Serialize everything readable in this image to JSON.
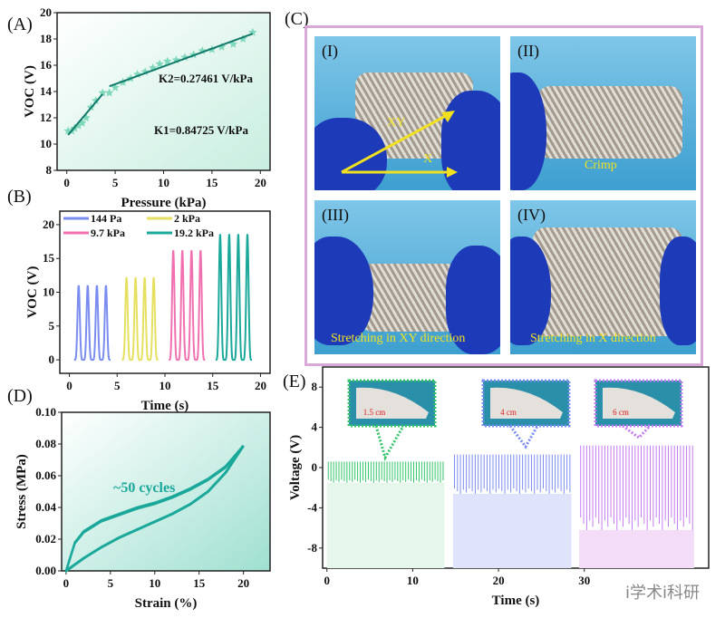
{
  "panels": {
    "A": "(A)",
    "B": "(B)",
    "C": "(C)",
    "D": "(D)",
    "E": "(E)"
  },
  "colors": {
    "teal": "#1aa89a",
    "green": "#33c46a",
    "blue": "#7b8cf0",
    "purple": "#c57bf0",
    "pink": "#f070b0",
    "yellow": "#e6e060",
    "c_border": "#d8a8d8"
  },
  "photos": [
    {
      "tag": "(I)",
      "caption_xy": "XY",
      "caption_x": "X"
    },
    {
      "tag": "(II)",
      "caption": "Crimp"
    },
    {
      "tag": "(III)",
      "caption": "Stretching in XY direction"
    },
    {
      "tag": "(IV)",
      "caption": "Stretching in X direction"
    }
  ],
  "insets": [
    "1.5 cm",
    "4 cm",
    "6 cm"
  ],
  "watermark": "i学术i科研",
  "chart_data": [
    {
      "id": "A",
      "type": "scatter",
      "xlabel": "Pressure (kPa)",
      "ylabel": "VOC (V)",
      "xlim": [
        -1,
        21
      ],
      "ylim": [
        8,
        20
      ],
      "xticks": [
        0,
        5,
        10,
        15,
        20
      ],
      "yticks": [
        8,
        10,
        12,
        14,
        16,
        18,
        20
      ],
      "x": [
        0.14,
        0.5,
        0.8,
        1.2,
        1.6,
        2.0,
        2.5,
        3.0,
        3.7,
        4.4,
        5.0,
        5.8,
        6.6,
        7.3,
        8.1,
        8.9,
        9.6,
        10.4,
        11.3,
        12.2,
        13.1,
        14.0,
        15.0,
        16.0,
        17.2,
        18.2,
        19.2
      ],
      "y": [
        11.0,
        11.0,
        11.2,
        11.4,
        11.6,
        12.0,
        12.8,
        13.3,
        13.9,
        13.9,
        14.3,
        14.7,
        15.0,
        15.3,
        15.5,
        15.8,
        16.1,
        16.3,
        16.4,
        16.6,
        16.8,
        17.1,
        17.2,
        17.4,
        17.6,
        18.0,
        18.5
      ],
      "fits": [
        {
          "label": "K1=0.84725 V/kPa",
          "x": [
            0.14,
            3.7
          ],
          "y": [
            10.7,
            13.8
          ]
        },
        {
          "label": "K2=0.27461 V/kPa",
          "x": [
            4.4,
            19.2
          ],
          "y": [
            14.4,
            18.4
          ]
        }
      ]
    },
    {
      "id": "B",
      "type": "line",
      "xlabel": "Time (s)",
      "ylabel": "VOC (V)",
      "xlim": [
        -1,
        21
      ],
      "ylim": [
        -2,
        22
      ],
      "xticks": [
        0,
        5,
        10,
        15,
        20
      ],
      "yticks": [
        0,
        5,
        10,
        15,
        20
      ],
      "legend": "top",
      "series": [
        {
          "name": "144 Pa",
          "peak": 11,
          "start": 0.5
        },
        {
          "name": "2 kPa",
          "peak": 12.2,
          "start": 5.5
        },
        {
          "name": "9.7 kPa",
          "peak": 16.2,
          "start": 10.4
        },
        {
          "name": "19.2 kPa",
          "peak": 18.6,
          "start": 15.3
        }
      ]
    },
    {
      "id": "D",
      "type": "line",
      "xlabel": "Strain (%)",
      "ylabel": "Stress (MPa)",
      "annotation": "~50 cycles",
      "xlim": [
        -0.5,
        23
      ],
      "ylim": [
        0,
        0.1
      ],
      "xticks": [
        0,
        5,
        10,
        15,
        20
      ],
      "yticks": [
        0.0,
        0.02,
        0.04,
        0.06,
        0.08,
        0.1
      ],
      "loading": {
        "x": [
          0,
          1,
          2,
          4,
          6,
          8,
          10,
          12,
          14,
          16,
          18,
          20
        ],
        "y": [
          0,
          0.018,
          0.025,
          0.032,
          0.036,
          0.04,
          0.043,
          0.047,
          0.052,
          0.058,
          0.066,
          0.079
        ]
      },
      "unloading": {
        "x": [
          20,
          18,
          16,
          14,
          12,
          10,
          8,
          6,
          4,
          2,
          1,
          0
        ],
        "y": [
          0.079,
          0.062,
          0.05,
          0.042,
          0.036,
          0.031,
          0.026,
          0.021,
          0.015,
          0.008,
          0.004,
          0
        ]
      }
    },
    {
      "id": "E",
      "type": "line",
      "xlabel": "Time (s)",
      "ylabel": "Voltage (V)",
      "xlim": [
        -0.5,
        44.5
      ],
      "ylim": [
        -10,
        10
      ],
      "xticks": [
        0,
        10,
        20,
        30
      ],
      "yticks": [
        -8,
        -4,
        0,
        4,
        8
      ],
      "segments": [
        {
          "t": [
            0,
            13.7
          ],
          "max": 0.6,
          "min": -1.5
        },
        {
          "t": [
            14.7,
            28.5
          ],
          "max": 1.3,
          "min": -2.6
        },
        {
          "t": [
            29.4,
            42.8
          ],
          "max": 2.2,
          "min": -6.2
        }
      ]
    }
  ]
}
